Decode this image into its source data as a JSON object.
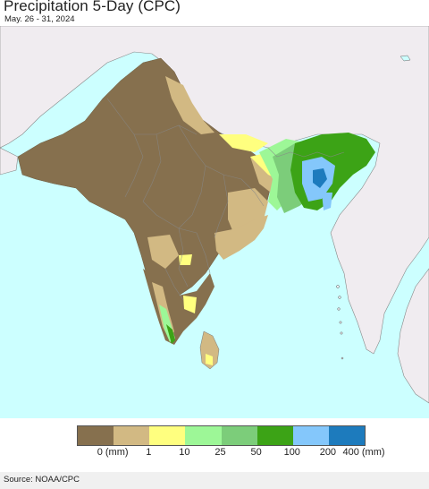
{
  "header": {
    "title": "Precipitation 5-Day (CPC)",
    "date_range": "May. 26 - 31, 2024"
  },
  "map": {
    "ocean_color": "#ccffff",
    "outside_land_color": "#f0ecf0",
    "border_color": "#888888"
  },
  "legend": {
    "colors": [
      "#86704e",
      "#d2b983",
      "#ffff7f",
      "#9df797",
      "#7ccd7a",
      "#3ca316",
      "#84c7fb",
      "#1d7bbd"
    ],
    "labels": [
      "0 (mm)",
      "1",
      "10",
      "25",
      "50",
      "100",
      "200",
      "400 (mm)"
    ]
  },
  "footer": {
    "source": "Source: NOAA/CPC"
  }
}
